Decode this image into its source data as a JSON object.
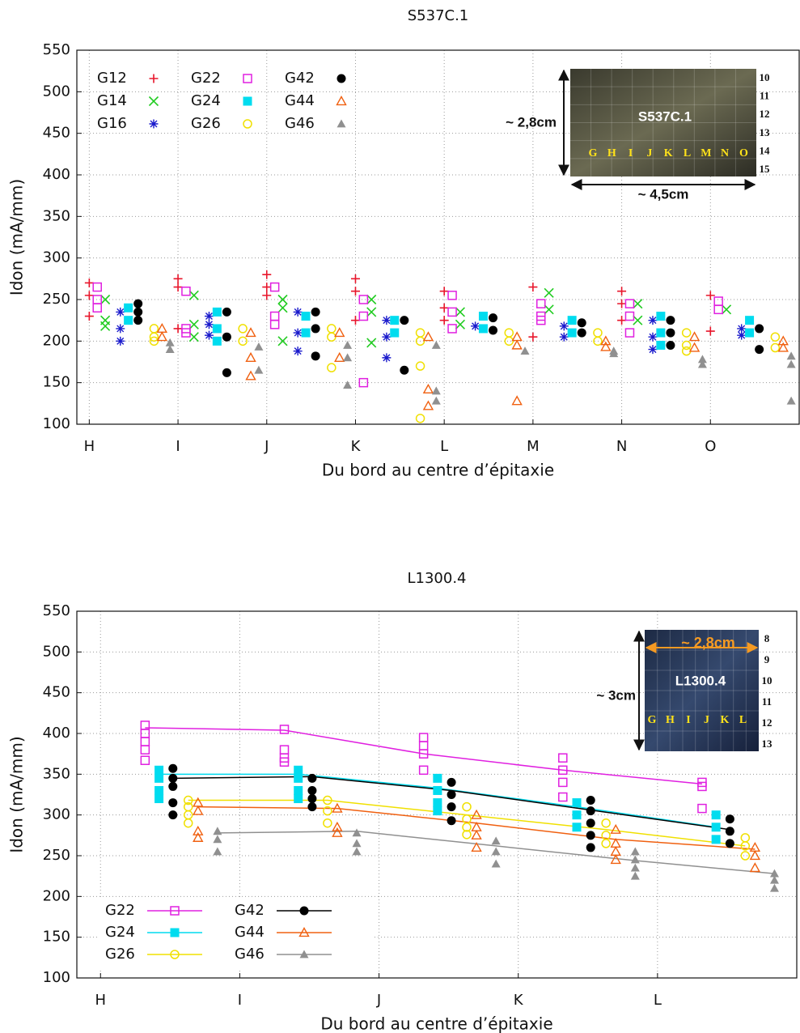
{
  "chart_data": [
    {
      "type": "scatter",
      "title": "S537C.1",
      "x_label": "Du bord au centre d’épitaxie",
      "y_label": "Idon (mA/mm)",
      "xlim": [
        -0.14,
        8
      ],
      "ylim": [
        100,
        550
      ],
      "grid": true,
      "legend": "upper left",
      "xticks": [
        {
          "value": 0,
          "label": "H"
        },
        {
          "value": 1,
          "label": "I"
        },
        {
          "value": 2,
          "label": "J"
        },
        {
          "value": 3,
          "label": "K"
        },
        {
          "value": 4,
          "label": "L"
        },
        {
          "value": 5,
          "label": "M"
        },
        {
          "value": 6,
          "label": "N"
        },
        {
          "value": 7,
          "label": "O"
        }
      ],
      "yticks": [
        100,
        150,
        200,
        250,
        300,
        350,
        400,
        450,
        500,
        550
      ],
      "inset": {
        "center_label": "S537C.1",
        "height_label": "~ 2,8cm",
        "width_label": "~ 4,5cm",
        "columns": [
          "G",
          "H",
          "I",
          "J",
          "K",
          "L",
          "M",
          "N",
          "O"
        ],
        "rows": [
          "10",
          "11",
          "12",
          "13",
          "14",
          "15"
        ]
      },
      "series": [
        {
          "name": "G12",
          "color": "#e8162b",
          "marker": "+",
          "x": [
            0,
            0,
            0,
            1,
            1,
            1,
            2,
            2,
            2,
            3,
            3,
            3,
            4,
            4,
            4,
            5,
            5,
            6,
            6,
            6,
            7,
            7
          ],
          "values": [
            270,
            255,
            230,
            275,
            265,
            215,
            280,
            265,
            255,
            275,
            260,
            225,
            260,
            240,
            225,
            265,
            205,
            260,
            245,
            225,
            255,
            212
          ]
        },
        {
          "name": "G14",
          "color": "#22cc22",
          "marker": "x",
          "x": [
            0.18,
            0.18,
            0.18,
            1.18,
            1.18,
            1.18,
            2.18,
            2.18,
            2.18,
            3.18,
            3.18,
            3.18,
            4.18,
            4.18,
            5.18,
            5.18,
            6.18,
            6.18,
            7.18
          ],
          "values": [
            250,
            225,
            218,
            255,
            220,
            205,
            250,
            240,
            200,
            250,
            235,
            198,
            235,
            220,
            258,
            238,
            245,
            225,
            238
          ]
        },
        {
          "name": "G16",
          "color": "#1a1acc",
          "marker": "*",
          "x": [
            0.35,
            0.35,
            0.35,
            1.35,
            1.35,
            1.35,
            2.35,
            2.35,
            2.35,
            3.35,
            3.35,
            3.35,
            4.35,
            5.35,
            5.35,
            6.35,
            6.35,
            6.35,
            7.35,
            7.35
          ],
          "values": [
            235,
            215,
            200,
            230,
            220,
            207,
            235,
            210,
            188,
            225,
            205,
            180,
            218,
            218,
            205,
            225,
            205,
            190,
            215,
            207
          ]
        },
        {
          "name": "G22",
          "color": "#e020e0",
          "marker": "square-open",
          "x": [
            0.09,
            0.09,
            0.09,
            1.09,
            1.09,
            1.09,
            2.09,
            2.09,
            2.09,
            3.09,
            3.09,
            3.09,
            4.09,
            4.09,
            4.09,
            5.09,
            5.09,
            5.09,
            6.09,
            6.09,
            6.09,
            7.09,
            7.09
          ],
          "values": [
            265,
            250,
            240,
            260,
            215,
            210,
            265,
            230,
            220,
            250,
            230,
            150,
            255,
            235,
            215,
            245,
            230,
            225,
            245,
            230,
            210,
            248,
            238
          ]
        },
        {
          "name": "G24",
          "color": "#00dcef",
          "marker": "square",
          "x": [
            0.44,
            0.44,
            1.44,
            1.44,
            1.44,
            2.44,
            2.44,
            3.44,
            3.44,
            4.44,
            4.44,
            5.44,
            5.44,
            6.44,
            6.44,
            6.44,
            7.44,
            7.44
          ],
          "values": [
            240,
            225,
            235,
            215,
            200,
            230,
            210,
            225,
            210,
            230,
            215,
            225,
            210,
            230,
            210,
            195,
            225,
            210
          ]
        },
        {
          "name": "G26",
          "color": "#f0e000",
          "marker": "circle-open",
          "x": [
            0.73,
            0.73,
            0.73,
            1.73,
            1.73,
            2.73,
            2.73,
            2.73,
            3.73,
            3.73,
            3.73,
            3.73,
            4.73,
            4.73,
            5.73,
            5.73,
            6.73,
            6.73,
            6.73,
            7.73,
            7.73
          ],
          "values": [
            215,
            205,
            200,
            215,
            200,
            215,
            205,
            168,
            210,
            200,
            170,
            107,
            210,
            200,
            210,
            200,
            210,
            195,
            188,
            205,
            192
          ]
        },
        {
          "name": "G42",
          "color": "#000000",
          "marker": "circle",
          "x": [
            0.55,
            0.55,
            0.55,
            1.55,
            1.55,
            1.55,
            2.55,
            2.55,
            2.55,
            3.55,
            3.55,
            4.55,
            4.55,
            5.55,
            5.55,
            6.55,
            6.55,
            6.55,
            7.55,
            7.55
          ],
          "values": [
            245,
            235,
            225,
            235,
            205,
            162,
            235,
            215,
            182,
            225,
            165,
            228,
            213,
            222,
            210,
            225,
            210,
            195,
            215,
            190
          ]
        },
        {
          "name": "G44",
          "color": "#f06010",
          "marker": "triangle-open",
          "x": [
            0.82,
            0.82,
            1.82,
            1.82,
            1.82,
            2.82,
            2.82,
            3.82,
            3.82,
            3.82,
            4.82,
            4.82,
            4.82,
            5.82,
            5.82,
            6.82,
            6.82,
            7.82,
            7.82
          ],
          "values": [
            215,
            205,
            210,
            180,
            158,
            210,
            180,
            205,
            142,
            122,
            205,
            195,
            128,
            200,
            193,
            205,
            192,
            200,
            192
          ]
        },
        {
          "name": "G46",
          "color": "#909090",
          "marker": "triangle",
          "x": [
            0.91,
            0.91,
            1.91,
            1.91,
            2.91,
            2.91,
            2.91,
            3.91,
            3.91,
            3.91,
            4.91,
            5.91,
            5.91,
            6.91,
            6.91,
            7.91,
            7.91,
            7.91
          ],
          "values": [
            198,
            190,
            193,
            165,
            195,
            180,
            147,
            195,
            140,
            128,
            188,
            188,
            185,
            178,
            172,
            182,
            172,
            128
          ]
        }
      ]
    },
    {
      "type": "scatter",
      "title": "L1300.4",
      "x_label": "Du bord au centre d’épitaxie",
      "y_label": "Idon (mA/mm)",
      "xlim": [
        -0.17,
        5
      ],
      "ylim": [
        100,
        550
      ],
      "grid": true,
      "legend": "lower left",
      "xticks": [
        {
          "value": 0,
          "label": "H"
        },
        {
          "value": 1,
          "label": "I"
        },
        {
          "value": 2,
          "label": "J"
        },
        {
          "value": 3,
          "label": "K"
        },
        {
          "value": 4,
          "label": "L"
        }
      ],
      "yticks": [
        100,
        150,
        200,
        250,
        300,
        350,
        400,
        450,
        500,
        550
      ],
      "inset": {
        "center_label": "L1300.4",
        "height_label": "~ 3cm",
        "width_label": "~ 2,8cm",
        "columns": [
          "G",
          "H",
          "I",
          "J",
          "K",
          "L"
        ],
        "rows": [
          "8",
          "9",
          "10",
          "11",
          "12",
          "13"
        ]
      },
      "series": [
        {
          "name": "G22",
          "color": "#e020e0",
          "marker": "square-open",
          "x": [
            0.32,
            0.32,
            0.32,
            0.32,
            0.32,
            1.32,
            1.32,
            1.32,
            1.32,
            2.32,
            2.32,
            2.32,
            2.32,
            3.32,
            3.32,
            3.32,
            3.32,
            4.32,
            4.32,
            4.32
          ],
          "values": [
            410,
            400,
            390,
            380,
            367,
            405,
            380,
            370,
            365,
            395,
            385,
            375,
            355,
            370,
            355,
            340,
            322,
            340,
            335,
            308
          ],
          "line_x": [
            0.32,
            1.32,
            2.32,
            3.32,
            4.32
          ],
          "line_values": [
            407,
            404,
            375,
            355,
            338
          ]
        },
        {
          "name": "G24",
          "color": "#00dcef",
          "marker": "square",
          "x": [
            0.42,
            0.42,
            0.42,
            0.42,
            1.42,
            1.42,
            1.42,
            1.42,
            2.42,
            2.42,
            2.42,
            2.42,
            3.42,
            3.42,
            3.42,
            4.42,
            4.42,
            4.42
          ],
          "values": [
            355,
            345,
            330,
            320,
            355,
            345,
            330,
            320,
            345,
            330,
            315,
            305,
            315,
            300,
            285,
            300,
            285,
            270
          ],
          "line_x": [
            0.42,
            1.42,
            2.42,
            3.42,
            4.42
          ],
          "line_values": [
            350,
            350,
            333,
            310,
            285
          ]
        },
        {
          "name": "G26",
          "color": "#f0e000",
          "marker": "circle-open",
          "x": [
            0.63,
            0.63,
            0.63,
            0.63,
            1.63,
            1.63,
            1.63,
            2.63,
            2.63,
            2.63,
            2.63,
            3.63,
            3.63,
            3.63,
            4.63,
            4.63,
            4.63
          ],
          "values": [
            318,
            310,
            300,
            290,
            318,
            305,
            290,
            310,
            295,
            285,
            276,
            290,
            275,
            265,
            272,
            262,
            250
          ],
          "line_x": [
            0.63,
            1.63,
            2.63,
            3.63,
            4.63
          ],
          "line_values": [
            318,
            318,
            300,
            282,
            262
          ]
        },
        {
          "name": "G42",
          "color": "#000000",
          "marker": "circle",
          "x": [
            0.52,
            0.52,
            0.52,
            0.52,
            0.52,
            1.52,
            1.52,
            1.52,
            1.52,
            2.52,
            2.52,
            2.52,
            2.52,
            3.52,
            3.52,
            3.52,
            3.52,
            3.52,
            4.52,
            4.52,
            4.52
          ],
          "values": [
            357,
            345,
            335,
            315,
            300,
            345,
            330,
            320,
            310,
            340,
            325,
            310,
            293,
            318,
            305,
            290,
            275,
            260,
            295,
            280,
            265
          ],
          "line_x": [
            0.52,
            1.52,
            2.52,
            3.52,
            4.52
          ],
          "line_values": [
            345,
            347,
            330,
            306,
            282
          ]
        },
        {
          "name": "G44",
          "color": "#f06010",
          "marker": "triangle-open",
          "x": [
            0.7,
            0.7,
            0.7,
            0.7,
            1.7,
            1.7,
            1.7,
            2.7,
            2.7,
            2.7,
            2.7,
            3.7,
            3.7,
            3.7,
            3.7,
            4.7,
            4.7,
            4.7
          ],
          "values": [
            315,
            305,
            280,
            272,
            308,
            285,
            278,
            300,
            285,
            275,
            260,
            282,
            265,
            255,
            245,
            260,
            250,
            235
          ],
          "line_x": [
            0.7,
            1.7,
            2.7,
            3.7,
            4.7
          ],
          "line_values": [
            310,
            308,
            290,
            270,
            258
          ]
        },
        {
          "name": "G46",
          "color": "#909090",
          "marker": "triangle",
          "x": [
            0.84,
            0.84,
            0.84,
            1.84,
            1.84,
            1.84,
            2.84,
            2.84,
            2.84,
            3.84,
            3.84,
            3.84,
            3.84,
            4.84,
            4.84,
            4.84
          ],
          "values": [
            280,
            270,
            255,
            278,
            265,
            255,
            268,
            255,
            240,
            255,
            245,
            235,
            225,
            228,
            220,
            210
          ],
          "line_x": [
            0.84,
            1.84,
            2.84,
            3.84,
            4.84
          ],
          "line_values": [
            278,
            280,
            262,
            244,
            228
          ]
        }
      ]
    }
  ]
}
